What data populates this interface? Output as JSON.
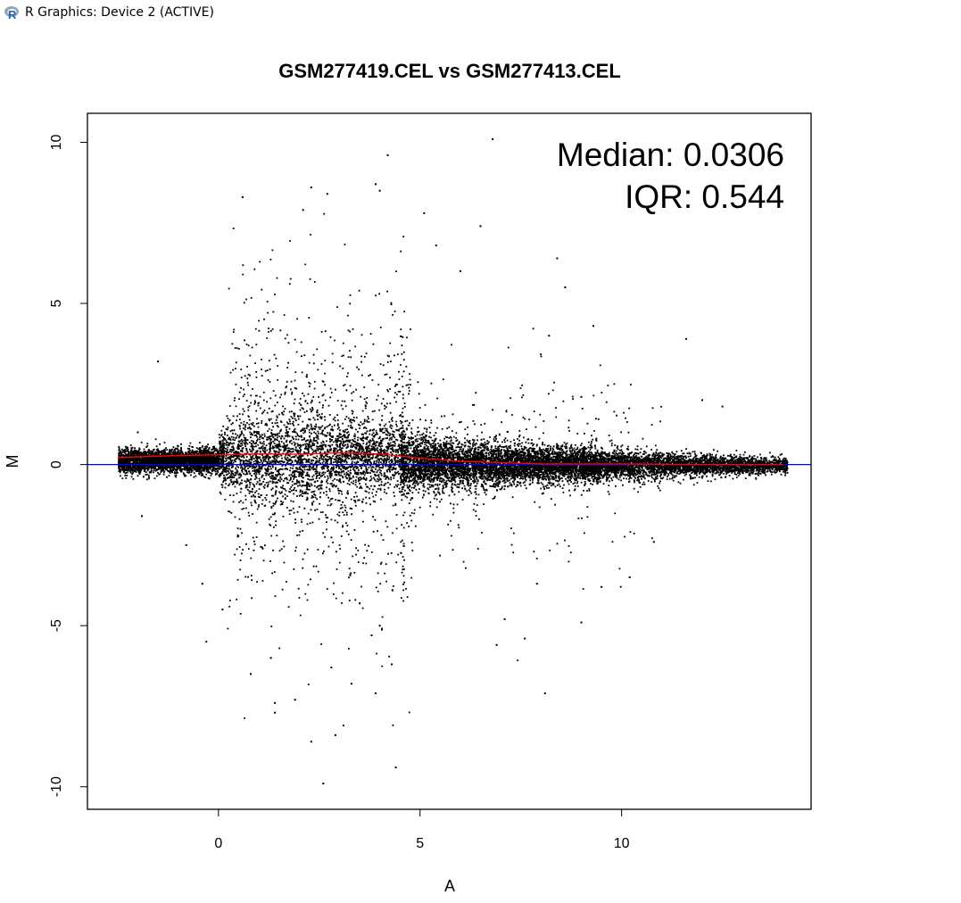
{
  "window": {
    "title": "R Graphics: Device 2 (ACTIVE)",
    "icon": "r-logo-icon",
    "logo_letter": "R"
  },
  "chart_data": {
    "type": "scatter",
    "title": "GSM277419.CEL vs GSM277413.CEL",
    "xlabel": "A",
    "ylabel": "M",
    "xlim": [
      -3.25,
      14.7
    ],
    "ylim": [
      -10.7,
      10.9
    ],
    "xticks": [
      0,
      5,
      10
    ],
    "yticks": [
      -10,
      -5,
      0,
      5,
      10
    ],
    "annotations": {
      "median": "Median: 0.0306",
      "iqr": "IQR: 0.544"
    },
    "reference_line": {
      "y": 0,
      "color": "#0000ff"
    },
    "loess": {
      "color": "#ff0000",
      "x": [
        -2.5,
        -1,
        0,
        1,
        2,
        3,
        4,
        5,
        6,
        7,
        8,
        9,
        10,
        11,
        12,
        13,
        14
      ],
      "y": [
        0.22,
        0.28,
        0.3,
        0.33,
        0.32,
        0.36,
        0.33,
        0.2,
        0.1,
        0.06,
        0.02,
        0.02,
        0.02,
        0.01,
        0.0,
        0.0,
        0.0
      ]
    },
    "point_color": "#000000",
    "outliers": {
      "x": [
        6.8,
        0.6,
        2.3,
        2.7,
        2.1,
        4.2,
        3.9,
        4.0,
        5.1,
        6.5,
        8.4,
        8.6,
        5.4,
        6.0,
        9.3,
        11.6,
        8.2,
        9.0,
        12.0,
        12.5,
        1.4,
        -0.8,
        -1.5,
        -1.9,
        -2.0,
        -0.3,
        -0.4,
        0.1,
        0.8,
        1.4,
        1.3,
        1.9,
        2.3,
        2.6,
        2.9,
        2.8,
        3.1,
        3.3,
        3.8,
        3.9,
        4.0,
        4.3,
        4.4,
        6.9,
        7.1,
        7.6,
        7.9,
        9.0,
        9.5,
        10.2,
        10.8,
        8.1
      ],
      "y": [
        10.1,
        8.3,
        8.6,
        8.4,
        7.9,
        9.6,
        8.7,
        8.5,
        7.8,
        7.4,
        6.4,
        5.5,
        6.8,
        6.0,
        4.3,
        3.9,
        4.0,
        2.1,
        2.0,
        1.8,
        -7.7,
        -2.5,
        3.2,
        -1.6,
        1.0,
        -5.5,
        -3.7,
        -4.5,
        -6.5,
        -7.4,
        -6.0,
        -7.3,
        -8.6,
        -9.9,
        -8.4,
        -6.3,
        -8.1,
        -6.8,
        -5.3,
        -7.1,
        -5.0,
        -6.2,
        -9.4,
        -5.6,
        -4.8,
        -5.4,
        -3.7,
        -4.9,
        -3.8,
        -3.5,
        -2.4,
        -7.1
      ]
    }
  }
}
